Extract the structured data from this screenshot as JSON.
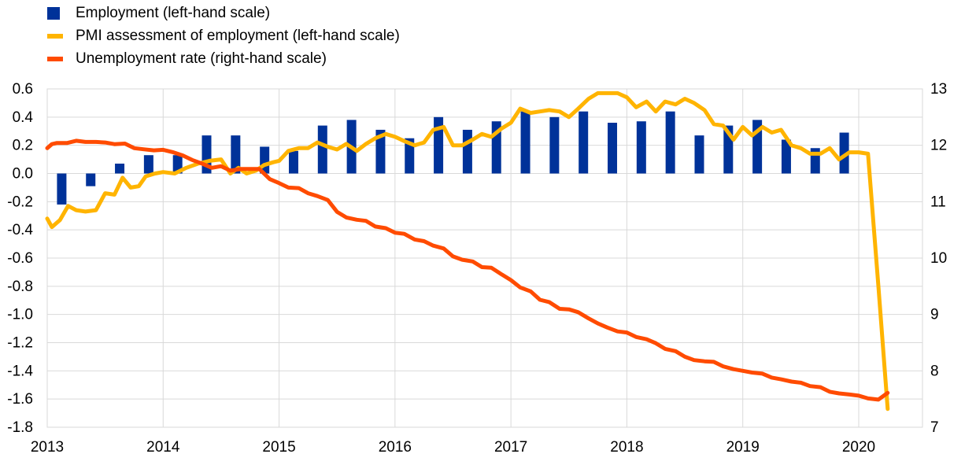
{
  "chart_data": {
    "type": "bar+line",
    "legend": [
      {
        "label": "Employment (left-hand scale)",
        "kind": "bar",
        "color": "#003299"
      },
      {
        "label": "PMI assessment of employment (left-hand scale)",
        "kind": "line",
        "color": "#FFB400"
      },
      {
        "label": "Unemployment rate (right-hand scale)",
        "kind": "line",
        "color": "#FF4B00"
      }
    ],
    "x_ticks": [
      "2013",
      "2014",
      "2015",
      "2016",
      "2017",
      "2018",
      "2019",
      "2020"
    ],
    "x_range": [
      2013.0,
      2020.55
    ],
    "y_left": {
      "min": -1.8,
      "max": 0.6,
      "ticks": [
        "0.6",
        "0.4",
        "0.2",
        "0.0",
        "-0.2",
        "-0.4",
        "-0.6",
        "-0.8",
        "-1.0",
        "-1.2",
        "-1.4",
        "-1.6",
        "-1.8"
      ]
    },
    "y_right": {
      "min": 7,
      "max": 13,
      "ticks": [
        "13",
        "12",
        "11",
        "10",
        "9",
        "8",
        "7"
      ]
    },
    "grid": true,
    "employment": {
      "x": [
        2013.125,
        2013.375,
        2013.625,
        2013.875,
        2014.125,
        2014.375,
        2014.625,
        2014.875,
        2015.125,
        2015.375,
        2015.625,
        2015.875,
        2016.125,
        2016.375,
        2016.625,
        2016.875,
        2017.125,
        2017.375,
        2017.625,
        2017.875,
        2018.125,
        2018.375,
        2018.625,
        2018.875,
        2019.125,
        2019.375,
        2019.625,
        2019.875
      ],
      "values": [
        -0.22,
        -0.09,
        0.07,
        0.13,
        0.13,
        0.27,
        0.27,
        0.19,
        0.16,
        0.34,
        0.38,
        0.31,
        0.25,
        0.4,
        0.31,
        0.37,
        0.44,
        0.4,
        0.44,
        0.36,
        0.37,
        0.44,
        0.27,
        0.34,
        0.38,
        0.24,
        0.18,
        0.29
      ]
    },
    "pmi": {
      "x": [
        2013.0,
        2013.04,
        2013.11,
        2013.18,
        2013.25,
        2013.33,
        2013.42,
        2013.5,
        2013.58,
        2013.65,
        2013.72,
        2013.79,
        2013.85,
        2013.93,
        2014.0,
        2014.1,
        2014.2,
        2014.3,
        2014.4,
        2014.5,
        2014.58,
        2014.65,
        2014.72,
        2014.8,
        2014.87,
        2014.95,
        2015.0,
        2015.08,
        2015.17,
        2015.25,
        2015.33,
        2015.42,
        2015.5,
        2015.58,
        2015.67,
        2015.75,
        2015.83,
        2015.92,
        2016.0,
        2016.08,
        2016.17,
        2016.25,
        2016.33,
        2016.42,
        2016.5,
        2016.58,
        2016.67,
        2016.75,
        2016.83,
        2016.92,
        2017.0,
        2017.08,
        2017.17,
        2017.25,
        2017.33,
        2017.42,
        2017.5,
        2017.58,
        2017.67,
        2017.75,
        2017.83,
        2017.92,
        2018.0,
        2018.08,
        2018.17,
        2018.25,
        2018.33,
        2018.42,
        2018.5,
        2018.58,
        2018.67,
        2018.75,
        2018.83,
        2018.92,
        2019.0,
        2019.08,
        2019.17,
        2019.25,
        2019.33,
        2019.42,
        2019.5,
        2019.58,
        2019.67,
        2019.75,
        2019.83,
        2019.92,
        2020.0,
        2020.08,
        2020.17,
        2020.25
      ],
      "values": [
        -0.32,
        -0.38,
        -0.33,
        -0.23,
        -0.26,
        -0.27,
        -0.26,
        -0.14,
        -0.15,
        -0.03,
        -0.1,
        -0.09,
        -0.02,
        0.0,
        0.01,
        0.0,
        0.04,
        0.07,
        0.09,
        0.1,
        0.0,
        0.04,
        0.0,
        0.02,
        0.06,
        0.08,
        0.09,
        0.16,
        0.18,
        0.18,
        0.22,
        0.19,
        0.17,
        0.21,
        0.16,
        0.21,
        0.25,
        0.28,
        0.26,
        0.23,
        0.2,
        0.22,
        0.31,
        0.33,
        0.2,
        0.2,
        0.24,
        0.28,
        0.26,
        0.32,
        0.36,
        0.46,
        0.43,
        0.44,
        0.45,
        0.44,
        0.4,
        0.46,
        0.53,
        0.57,
        0.57,
        0.57,
        0.54,
        0.47,
        0.51,
        0.44,
        0.51,
        0.49,
        0.53,
        0.5,
        0.45,
        0.35,
        0.34,
        0.24,
        0.33,
        0.27,
        0.33,
        0.29,
        0.31,
        0.2,
        0.18,
        0.14,
        0.14,
        0.18,
        0.1,
        0.15,
        0.15,
        0.14,
        -0.8,
        -1.67
      ]
    },
    "unemployment": {
      "x": [
        2013.0,
        2013.04,
        2013.08,
        2013.17,
        2013.25,
        2013.33,
        2013.42,
        2013.5,
        2013.58,
        2013.67,
        2013.75,
        2013.83,
        2013.92,
        2014.0,
        2014.08,
        2014.17,
        2014.25,
        2014.33,
        2014.42,
        2014.5,
        2014.58,
        2014.67,
        2014.75,
        2014.83,
        2014.92,
        2015.0,
        2015.08,
        2015.17,
        2015.25,
        2015.33,
        2015.42,
        2015.5,
        2015.58,
        2015.67,
        2015.75,
        2015.83,
        2015.92,
        2016.0,
        2016.08,
        2016.17,
        2016.25,
        2016.33,
        2016.42,
        2016.5,
        2016.58,
        2016.67,
        2016.75,
        2016.83,
        2016.92,
        2017.0,
        2017.08,
        2017.17,
        2017.25,
        2017.33,
        2017.42,
        2017.5,
        2017.58,
        2017.67,
        2017.75,
        2017.83,
        2017.92,
        2018.0,
        2018.08,
        2018.17,
        2018.25,
        2018.33,
        2018.42,
        2018.5,
        2018.58,
        2018.67,
        2018.75,
        2018.83,
        2018.92,
        2019.0,
        2019.08,
        2019.17,
        2019.25,
        2019.33,
        2019.42,
        2019.5,
        2019.58,
        2019.67,
        2019.75,
        2019.83,
        2019.92,
        2020.0,
        2020.08,
        2020.17,
        2020.25
      ],
      "values": [
        11.95,
        12.02,
        12.04,
        12.04,
        12.08,
        12.06,
        12.06,
        12.05,
        12.02,
        12.03,
        11.95,
        11.93,
        11.91,
        11.92,
        11.88,
        11.82,
        11.74,
        11.68,
        11.6,
        11.63,
        11.55,
        11.58,
        11.58,
        11.58,
        11.4,
        11.33,
        11.25,
        11.24,
        11.15,
        11.1,
        11.03,
        10.82,
        10.72,
        10.68,
        10.66,
        10.56,
        10.53,
        10.45,
        10.43,
        10.33,
        10.3,
        10.22,
        10.17,
        10.03,
        9.97,
        9.94,
        9.84,
        9.83,
        9.71,
        9.61,
        9.48,
        9.41,
        9.26,
        9.22,
        9.1,
        9.09,
        9.04,
        8.93,
        8.84,
        8.77,
        8.7,
        8.68,
        8.6,
        8.56,
        8.49,
        8.39,
        8.35,
        8.25,
        8.19,
        8.17,
        8.16,
        8.08,
        8.03,
        8.0,
        7.97,
        7.95,
        7.88,
        7.85,
        7.81,
        7.79,
        7.73,
        7.71,
        7.63,
        7.6,
        7.58,
        7.56,
        7.51,
        7.49,
        7.61
      ]
    }
  }
}
